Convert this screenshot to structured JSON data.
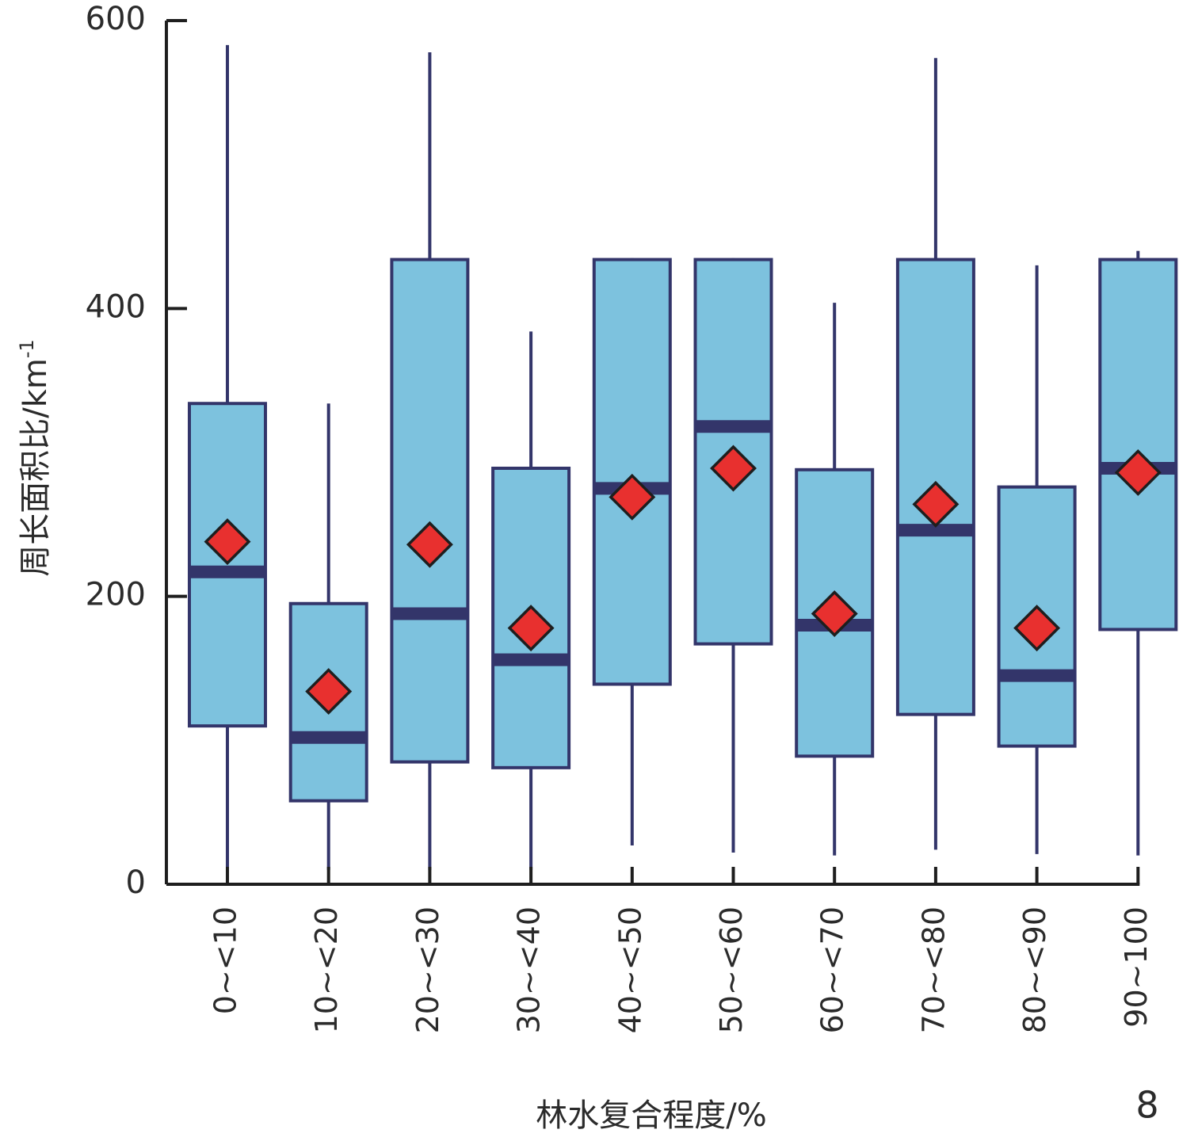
{
  "chart_data": {
    "type": "box",
    "ylabel": "周长面积比/km",
    "ylabel_sup": "-1",
    "xlabel": "林水复合程度/%",
    "panel_label": "8",
    "ylim": [
      0,
      600
    ],
    "yticks": [
      "0",
      "200",
      "400",
      "600"
    ],
    "categories": [
      "0~<10",
      "10~<20",
      "20~<30",
      "30~<40",
      "40~<50",
      "50~<60",
      "60~<70",
      "70~<80",
      "80~<90",
      "90~100"
    ],
    "boxes": [
      {
        "min": 10,
        "q1": 110,
        "median": 217,
        "q3": 334,
        "max": 583,
        "mean": 238
      },
      {
        "min": 10,
        "q1": 58,
        "median": 102,
        "q3": 195,
        "max": 334,
        "mean": 134
      },
      {
        "min": 10,
        "q1": 85,
        "median": 188,
        "q3": 434,
        "max": 578,
        "mean": 236
      },
      {
        "min": 10,
        "q1": 81,
        "median": 156,
        "q3": 289,
        "max": 384,
        "mean": 178
      },
      {
        "min": 27,
        "q1": 139,
        "median": 275,
        "q3": 434,
        "max": 435,
        "mean": 269
      },
      {
        "min": 22,
        "q1": 167,
        "median": 318,
        "q3": 434,
        "max": 435,
        "mean": 289
      },
      {
        "min": 20,
        "q1": 89,
        "median": 180,
        "q3": 288,
        "max": 404,
        "mean": 188
      },
      {
        "min": 24,
        "q1": 118,
        "median": 246,
        "q3": 434,
        "max": 574,
        "mean": 264
      },
      {
        "min": 21,
        "q1": 96,
        "median": 145,
        "q3": 276,
        "max": 430,
        "mean": 178
      },
      {
        "min": 20,
        "q1": 177,
        "median": 289,
        "q3": 434,
        "max": 440,
        "mean": 286
      }
    ],
    "grid": false,
    "legend": "none",
    "colors": {
      "box_fill": "#7dc2de",
      "box_stroke": "#33356a",
      "median": "#33356a",
      "whisker": "#33356a",
      "mean_marker": "#e8302f",
      "mean_marker_stroke": "#1e1e1e",
      "axis": "#1e1e1e"
    }
  }
}
